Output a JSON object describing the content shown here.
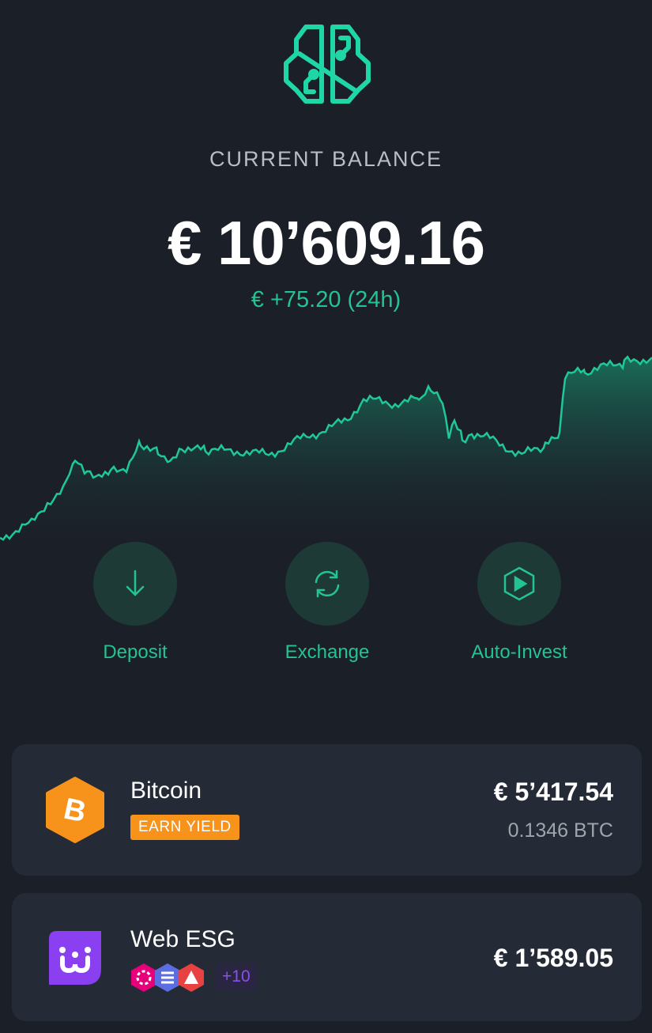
{
  "header": {
    "balance_label": "CURRENT BALANCE",
    "balance": "€ 10’609.16",
    "change": "€ +75.20 (24h)"
  },
  "actions": [
    {
      "label": "Deposit",
      "icon": "arrow-down-icon"
    },
    {
      "label": "Exchange",
      "icon": "refresh-icon"
    },
    {
      "label": "Auto-Invest",
      "icon": "play-icon"
    }
  ],
  "assets": [
    {
      "name": "Bitcoin",
      "badge": "EARN YIELD",
      "value": "€ 5’417.54",
      "amount": "0.1346 BTC",
      "icon": "bitcoin-icon"
    },
    {
      "name": "Web ESG",
      "more": "+10",
      "value": "€ 1’589.05",
      "icon": "web-esg-icon"
    }
  ],
  "colors": {
    "accent": "#23c393",
    "background": "#1b1f28",
    "card": "#252b36",
    "bitcoin": "#f7931a",
    "esg": "#8a4ff0"
  }
}
